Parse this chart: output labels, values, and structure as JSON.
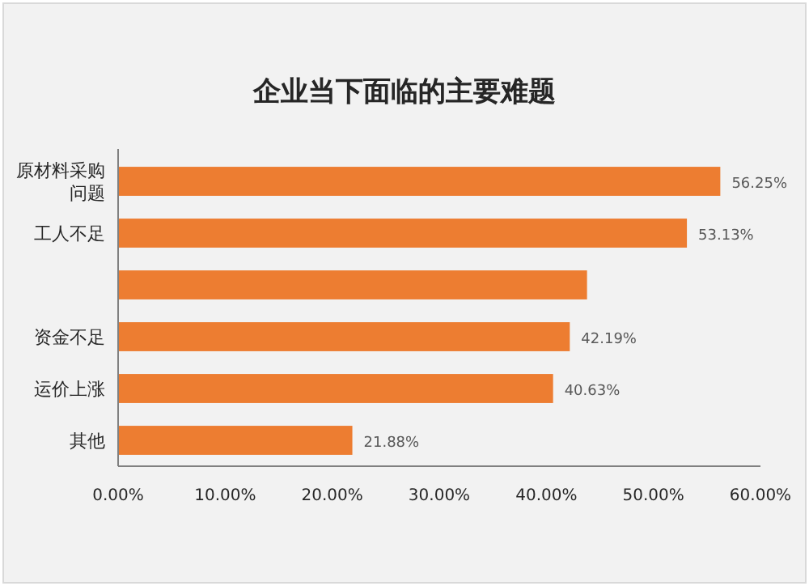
{
  "chart_data": {
    "type": "bar",
    "orientation": "horizontal",
    "title": "企业当下面临的主要难题",
    "categories": [
      "原材料采购问题",
      "工人不足",
      null,
      "资金不足",
      "运价上涨",
      "其他"
    ],
    "values": [
      56.25,
      53.13,
      43.8,
      42.19,
      40.63,
      21.88
    ],
    "value_labels": [
      "56.25%",
      "53.13%",
      null,
      "42.19%",
      "40.63%",
      "21.88%"
    ],
    "color": "#ed7d31",
    "xlim": [
      0,
      60
    ],
    "xticks": [
      {
        "value": 0,
        "label": "0.00%"
      },
      {
        "value": 10,
        "label": "10.00%"
      },
      {
        "value": 20,
        "label": "20.00%"
      },
      {
        "value": 30,
        "label": "30.00%"
      },
      {
        "value": 40,
        "label": "40.00%"
      },
      {
        "value": 50,
        "label": "50.00%"
      },
      {
        "value": 60,
        "label": "60.00%"
      }
    ],
    "grid": false
  }
}
